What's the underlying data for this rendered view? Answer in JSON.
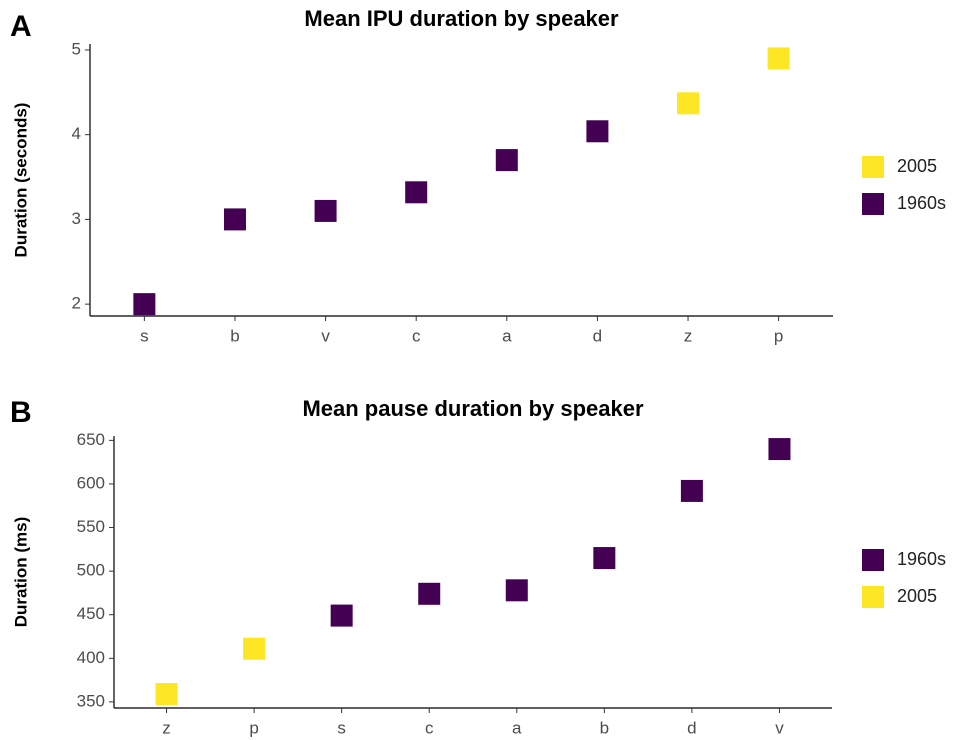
{
  "chart_data": [
    {
      "type": "scatter",
      "panel_label": "A",
      "title": "Mean IPU duration by speaker",
      "y_label": "Duration (seconds)",
      "categories": [
        "s",
        "b",
        "v",
        "c",
        "a",
        "d",
        "z",
        "p"
      ],
      "series": [
        {
          "name": "2005",
          "color": "#fde725",
          "values": [
            null,
            null,
            null,
            null,
            null,
            null,
            4.37,
            4.9
          ]
        },
        {
          "name": "1960s",
          "color": "#440154",
          "values": [
            2.0,
            3.0,
            3.1,
            3.32,
            3.7,
            4.04,
            null,
            null
          ]
        }
      ],
      "ylim": [
        1.86,
        5.07
      ],
      "yticks": [
        2,
        3,
        4,
        5
      ]
    },
    {
      "type": "scatter",
      "panel_label": "B",
      "title": "Mean pause duration by speaker",
      "y_label": "Duration (ms)",
      "categories": [
        "z",
        "p",
        "s",
        "c",
        "a",
        "b",
        "d",
        "v"
      ],
      "series": [
        {
          "name": "1960s",
          "color": "#440154",
          "values": [
            null,
            null,
            449,
            474,
            478,
            515,
            592,
            640
          ]
        },
        {
          "name": "2005",
          "color": "#fde725",
          "values": [
            359,
            411,
            null,
            null,
            null,
            null,
            null,
            null
          ]
        }
      ],
      "ylim": [
        343,
        655
      ],
      "yticks": [
        350,
        400,
        450,
        500,
        550,
        600,
        650
      ]
    }
  ]
}
